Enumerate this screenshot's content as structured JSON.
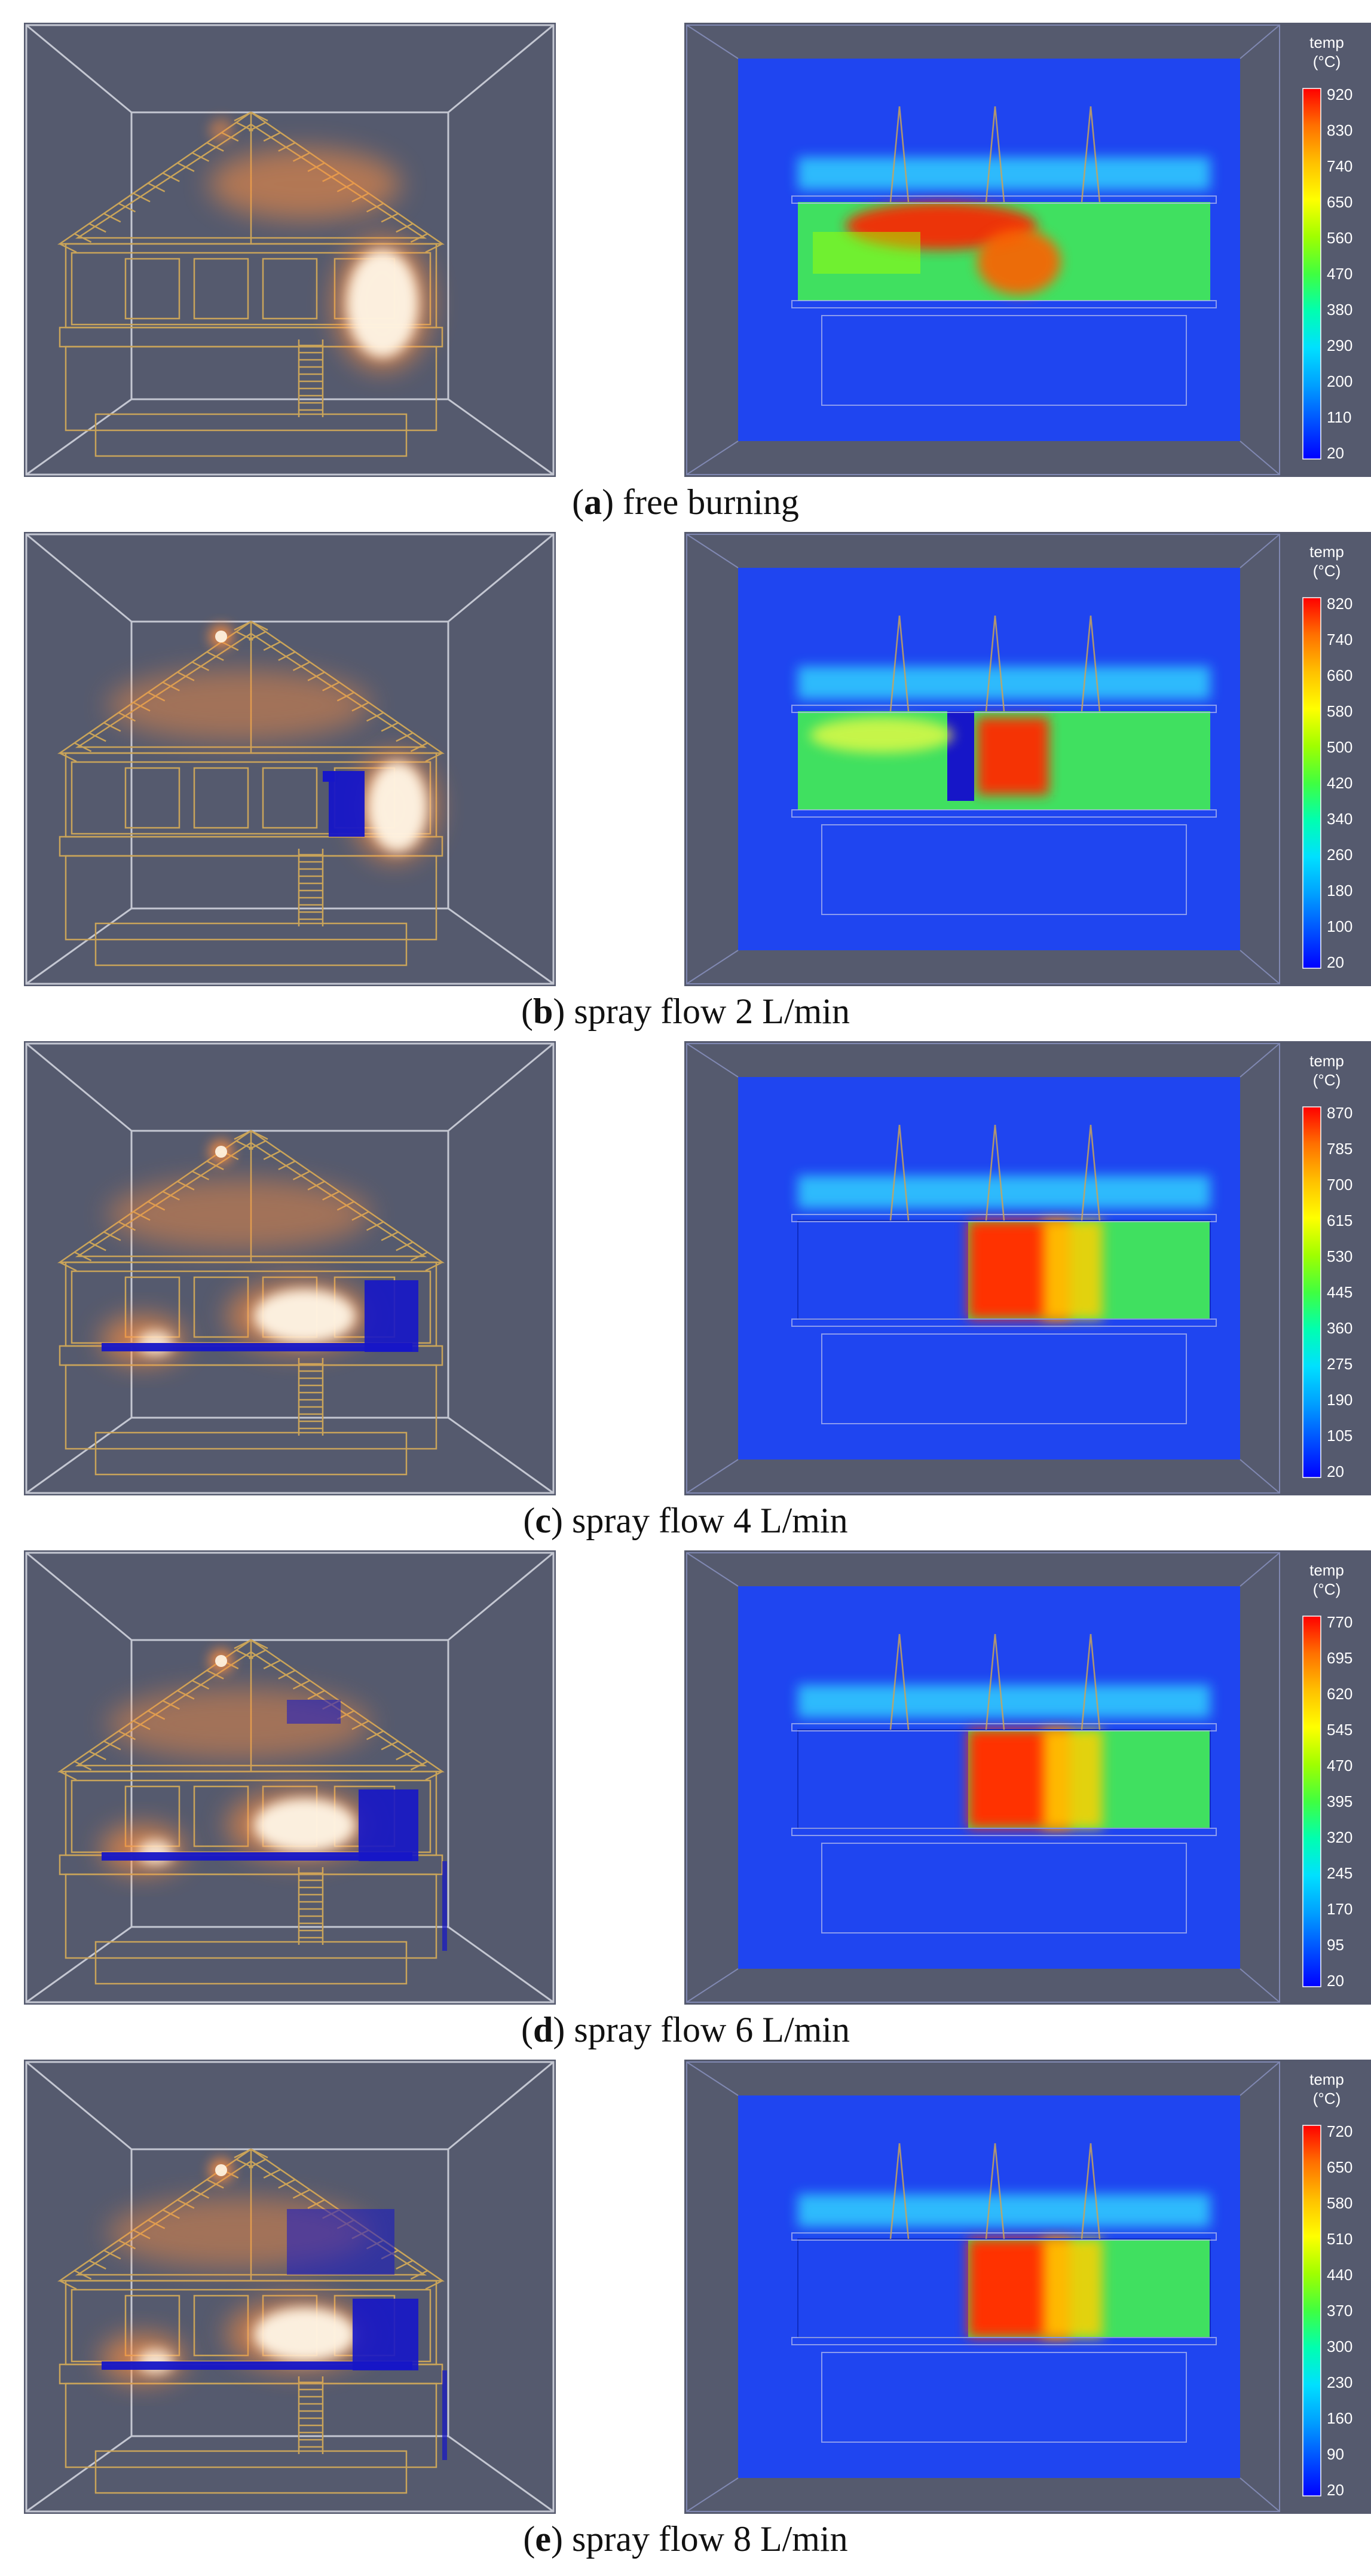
{
  "colorbar_scale": [
    "#0000ff",
    "#0050ff",
    "#00a0ff",
    "#00e0ff",
    "#00ffb0",
    "#40ff40",
    "#a0ff00",
    "#ffff00",
    "#ffc000",
    "#ff7000",
    "#ff0000"
  ],
  "colors": {
    "scene_bg": "#555a6e",
    "model_wire": "#c9a45a",
    "box_wire": "#c4c7d2",
    "domain_blue": "#1f45f0",
    "spray_blue": "#1616c8",
    "flame_white": "#fff6e6",
    "flame_orange": "#ff9040"
  },
  "panels": [
    {
      "letter": "a",
      "caption_rest": "free burning",
      "legend_title": "temp",
      "legend_unit": "(°C)",
      "ticks": [
        "920",
        "830",
        "740",
        "650",
        "560",
        "470",
        "380",
        "290",
        "200",
        "110",
        "20"
      ]
    },
    {
      "letter": "b",
      "caption_rest": "spray flow 2 L/min",
      "legend_title": "temp",
      "legend_unit": "(°C)",
      "ticks": [
        "820",
        "740",
        "660",
        "580",
        "500",
        "420",
        "340",
        "260",
        "180",
        "100",
        "20"
      ]
    },
    {
      "letter": "c",
      "caption_rest": "spray flow 4 L/min",
      "legend_title": "temp",
      "legend_unit": "(°C)",
      "ticks": [
        "870",
        "785",
        "700",
        "615",
        "530",
        "445",
        "360",
        "275",
        "190",
        "105",
        "20"
      ]
    },
    {
      "letter": "d",
      "caption_rest": "spray flow 6 L/min",
      "legend_title": "temp",
      "legend_unit": "(°C)",
      "ticks": [
        "770",
        "695",
        "620",
        "545",
        "470",
        "395",
        "320",
        "245",
        "170",
        "95",
        "20"
      ]
    },
    {
      "letter": "e",
      "caption_rest": "spray flow 8 L/min",
      "legend_title": "temp",
      "legend_unit": "(°C)",
      "ticks": [
        "720",
        "650",
        "580",
        "510",
        "440",
        "370",
        "300",
        "230",
        "160",
        "90",
        "20"
      ]
    }
  ]
}
